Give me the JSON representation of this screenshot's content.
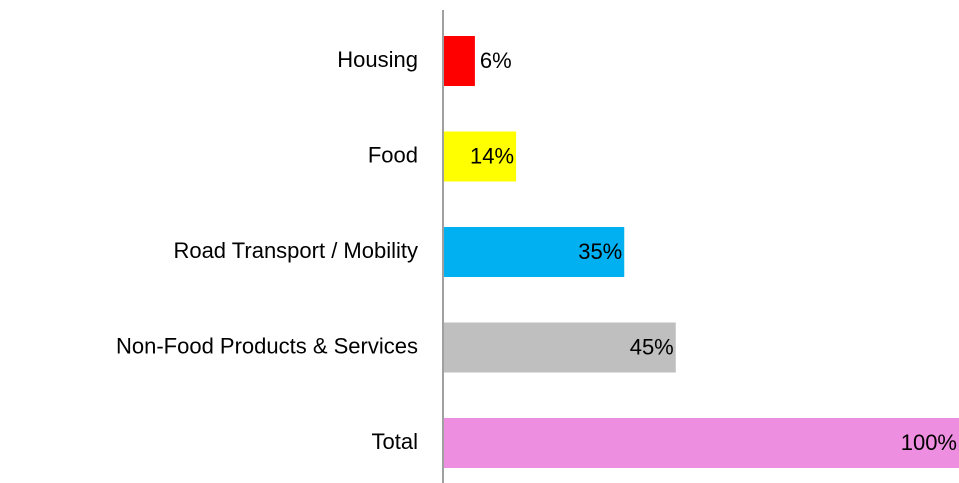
{
  "chart_data": {
    "type": "bar",
    "orientation": "horizontal",
    "categories": [
      "Housing",
      "Food",
      "Road Transport / Mobility",
      "Non-Food Products & Services",
      "Total"
    ],
    "values": [
      6,
      14,
      35,
      45,
      100
    ],
    "value_labels": [
      "6%",
      "14%",
      "35%",
      "45%",
      "100%"
    ],
    "colors": [
      "#ff0000",
      "#ffff00",
      "#00b0f0",
      "#bfbfbf",
      "#ee8ee0"
    ],
    "xlim": [
      0,
      100
    ]
  }
}
